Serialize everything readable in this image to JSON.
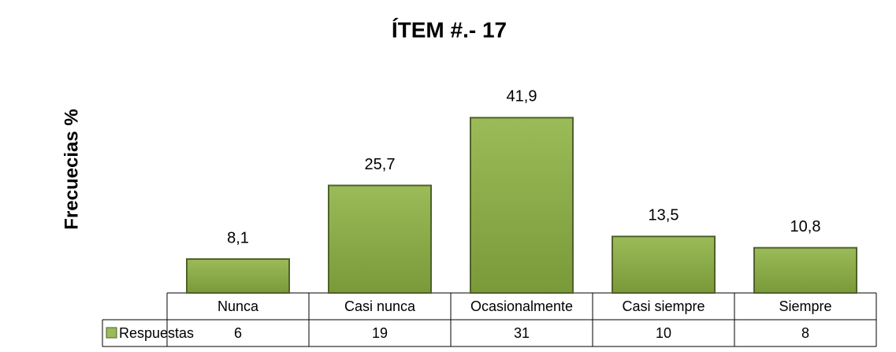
{
  "chart_data": {
    "type": "bar",
    "title": "ÍTEM #.- 17",
    "y_label": "Frecuecias %",
    "categories": [
      "Nunca",
      "Casi nunca",
      "Ocasionalmente",
      "Casi siempre",
      "Siempre"
    ],
    "series": [
      {
        "name": "Respuestas",
        "color": "#9bbb59",
        "values": [
          8.1,
          25.7,
          41.9,
          13.5,
          10.8
        ],
        "value_labels": [
          "8,1",
          "25,7",
          "41,9",
          "13,5",
          "10,8"
        ],
        "table_values": [
          6,
          19,
          31,
          10,
          8
        ]
      }
    ],
    "ylim": [
      0,
      45
    ]
  }
}
